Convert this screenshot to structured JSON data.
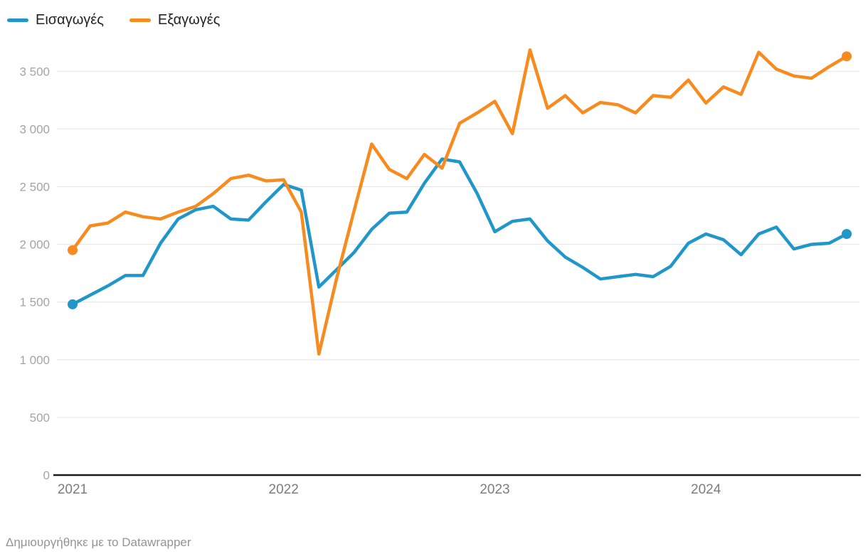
{
  "legend": {
    "items": [
      {
        "id": "imports",
        "label": "Εισαγωγές",
        "color": "#2196c8"
      },
      {
        "id": "exports",
        "label": "Εξαγωγές",
        "color": "#f78b1f"
      }
    ]
  },
  "footer": {
    "text": "Δημιουργήθηκε με το Datawrapper"
  },
  "chart_data": {
    "type": "line",
    "title": "",
    "xlabel": "",
    "ylabel": "",
    "x_unit": "month",
    "grid": "horizontal",
    "legend_position": "top-left",
    "end_markers": true,
    "ylim": [
      0,
      3700
    ],
    "y_ticks": [
      {
        "value": 0,
        "label": "0"
      },
      {
        "value": 500,
        "label": "500"
      },
      {
        "value": 1000,
        "label": "1 000"
      },
      {
        "value": 1500,
        "label": "1 500"
      },
      {
        "value": 2000,
        "label": "2 000"
      },
      {
        "value": 2500,
        "label": "2 500"
      },
      {
        "value": 3000,
        "label": "3 000"
      },
      {
        "value": 3500,
        "label": "3 500"
      }
    ],
    "x_ticks": [
      {
        "label": "2021",
        "month_index": 0
      },
      {
        "label": "2022",
        "month_index": 12
      },
      {
        "label": "2023",
        "month_index": 24
      },
      {
        "label": "2024",
        "month_index": 36
      }
    ],
    "x": [
      "2021-01",
      "2021-02",
      "2021-03",
      "2021-04",
      "2021-05",
      "2021-06",
      "2021-07",
      "2021-08",
      "2021-09",
      "2021-10",
      "2021-11",
      "2021-12",
      "2022-01",
      "2022-02",
      "2022-03",
      "2022-04",
      "2022-05",
      "2022-06",
      "2022-07",
      "2022-08",
      "2022-09",
      "2022-10",
      "2022-11",
      "2022-12",
      "2023-01",
      "2023-02",
      "2023-03",
      "2023-04",
      "2023-05",
      "2023-06",
      "2023-07",
      "2023-08",
      "2023-09",
      "2023-10",
      "2023-11",
      "2023-12",
      "2024-01",
      "2024-02",
      "2024-03",
      "2024-04",
      "2024-05",
      "2024-06",
      "2024-07",
      "2024-08",
      "2024-09"
    ],
    "series": [
      {
        "name": "Εισαγωγές",
        "color": "#2196c8",
        "values": [
          1480,
          1560,
          1640,
          1730,
          1730,
          2010,
          2220,
          2300,
          2330,
          2220,
          2210,
          2370,
          2520,
          2470,
          1630,
          1780,
          1930,
          2130,
          2270,
          2280,
          2530,
          2740,
          2715,
          2440,
          2110,
          2200,
          2220,
          2030,
          1890,
          1800,
          1700,
          1720,
          1740,
          1720,
          1810,
          2010,
          2090,
          2040,
          1910,
          2090,
          2150,
          1960,
          2000,
          2010,
          2090
        ]
      },
      {
        "name": "Εξαγωγές",
        "color": "#f78b1f",
        "values": [
          1950,
          2160,
          2185,
          2280,
          2240,
          2220,
          2280,
          2330,
          2440,
          2570,
          2600,
          2550,
          2560,
          2280,
          1050,
          1700,
          2290,
          2870,
          2650,
          2570,
          2780,
          2660,
          3050,
          3140,
          3240,
          2960,
          3685,
          3180,
          3290,
          3140,
          3230,
          3210,
          3140,
          3290,
          3275,
          3425,
          3225,
          3365,
          3300,
          3665,
          3520,
          3460,
          3440,
          3540,
          3630
        ]
      }
    ]
  }
}
